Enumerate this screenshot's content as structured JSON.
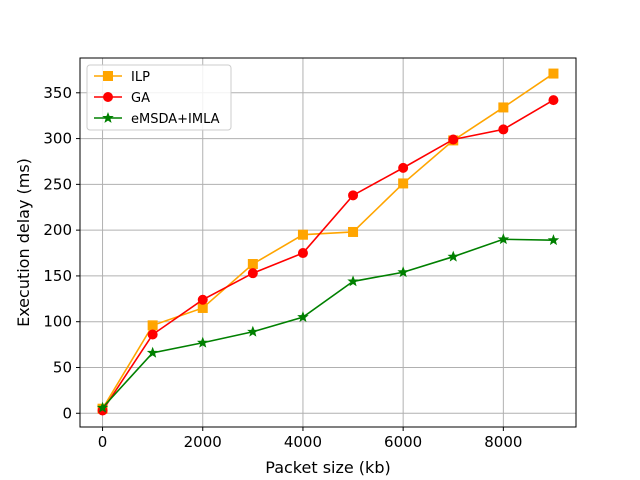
{
  "chart_data": {
    "type": "line",
    "title": "",
    "xlabel": "Packet size (kb)",
    "ylabel": "Execution delay (ms)",
    "xlim": [
      -450,
      9450
    ],
    "ylim": [
      -15,
      388
    ],
    "xticks": [
      0,
      2000,
      4000,
      6000,
      8000
    ],
    "yticks": [
      0,
      50,
      100,
      150,
      200,
      250,
      300,
      350
    ],
    "grid": true,
    "legend_position": "top-left",
    "x": [
      0,
      1000,
      2000,
      3000,
      4000,
      5000,
      6000,
      7000,
      8000,
      9000
    ],
    "series": [
      {
        "name": "ILP",
        "color": "#ffa500",
        "marker": "square",
        "values": [
          5,
          96,
          115,
          163,
          195,
          198,
          251,
          298,
          334,
          371
        ]
      },
      {
        "name": "GA",
        "color": "#ff0000",
        "marker": "circle",
        "values": [
          3,
          86,
          124,
          153,
          175,
          238,
          268,
          299,
          310,
          342
        ]
      },
      {
        "name": "eMSDA+IMLA",
        "color": "#008000",
        "marker": "star",
        "values": [
          6,
          66,
          77,
          89,
          105,
          144,
          154,
          171,
          190,
          189
        ]
      }
    ]
  }
}
